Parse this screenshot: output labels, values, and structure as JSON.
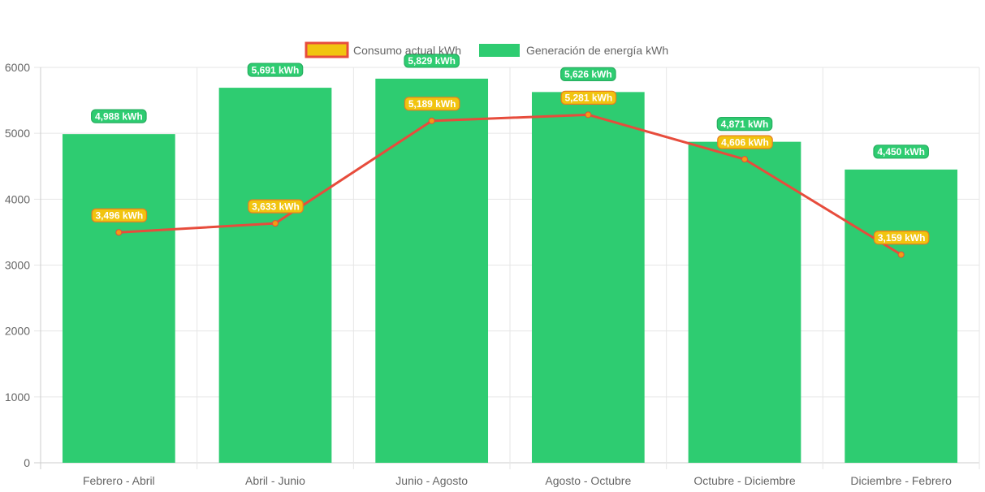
{
  "chart_data": {
    "type": "bar",
    "categories": [
      "Febrero - Abril",
      "Abril - Junio",
      "Junio - Agosto",
      "Agosto - Octubre",
      "Octubre - Diciembre",
      "Diciembre - Febrero"
    ],
    "series": [
      {
        "name": "Consumo actual kWh",
        "type": "line",
        "values": [
          3496,
          3633,
          5189,
          5281,
          4606,
          3159
        ],
        "labels": [
          "3,496 kWh",
          "3,633 kWh",
          "5,189 kWh",
          "5,281 kWh",
          "4,606 kWh",
          "3,159 kWh"
        ],
        "color": "#e74c3c",
        "fill": "#f1c40f"
      },
      {
        "name": "Generación de energía kWh",
        "type": "bar",
        "values": [
          4988,
          5691,
          5829,
          5626,
          4871,
          4450
        ],
        "labels": [
          "4,988 kWh",
          "5,691 kWh",
          "5,829 kWh",
          "5,626 kWh",
          "4,871 kWh",
          "4,450 kWh"
        ],
        "color": "#2ecc71"
      }
    ],
    "ylim": [
      0,
      6000
    ],
    "yticks": [
      "0",
      "1000",
      "2000",
      "3000",
      "4000",
      "5000",
      "6000"
    ],
    "grid": true,
    "legend": "top-center"
  }
}
